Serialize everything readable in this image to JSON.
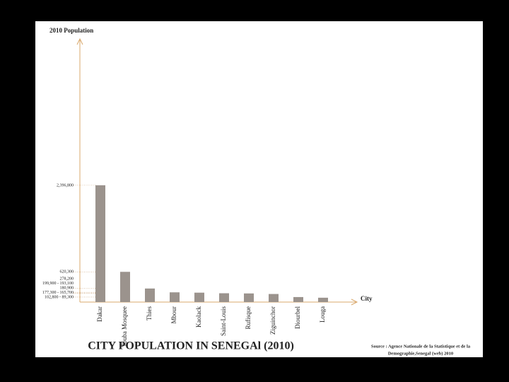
{
  "chart_data": {
    "type": "bar",
    "title": "CITY POPULATION IN SENEGAl (2010)",
    "y_label": "2010 Population",
    "x_label": "City",
    "source": [
      "Source : Agence Nationale de la Statistique et de la",
      "Demographie,Senegal (web) 2010"
    ],
    "categories": [
      "Dakar",
      "Touba Mosquee",
      "Thies",
      "Mbour",
      "Kaolack",
      "Saint-Louis",
      "Rufisque",
      "Ziguinchor",
      "Diourbel",
      "Louga"
    ],
    "values": [
      2396800,
      620300,
      278200,
      199900,
      193100,
      180900,
      177300,
      165700,
      102800,
      89300
    ],
    "color": "#9b938d",
    "ylim": [
      0,
      5400000
    ],
    "yticks": [
      {
        "value": 2396800,
        "label": "2,396,800"
      },
      {
        "value": 620300,
        "label": "620,300"
      },
      {
        "value": 278200,
        "label": "278,200"
      },
      {
        "value": 199900,
        "label": "199,900 - 193,100"
      },
      {
        "value": 180900,
        "label": "180,900"
      },
      {
        "value": 177300,
        "label": "177,300 - 165,700"
      },
      {
        "value": 102800,
        "label": "102,800 - 89,300"
      }
    ],
    "grid": true
  }
}
